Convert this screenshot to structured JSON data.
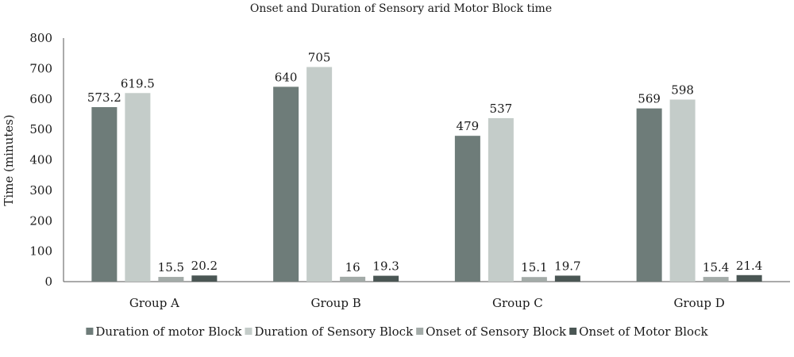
{
  "chart_data": {
    "type": "bar",
    "title": "Onset and Duration of Sensory arid Motor Block time",
    "xlabel": "",
    "ylabel": "Time (minutes)",
    "ylim": [
      0,
      800
    ],
    "yticks": [
      0,
      100,
      200,
      300,
      400,
      500,
      600,
      700,
      800
    ],
    "grid": false,
    "legend_position": "bottom",
    "categories": [
      "Group A",
      "Group B",
      "Group C",
      "Group D"
    ],
    "series": [
      {
        "name": "Duration of motor Block",
        "color": "#6e7c79",
        "values": [
          573.2,
          640,
          479,
          569
        ],
        "labels": [
          "573.2",
          "640",
          "479",
          "569"
        ]
      },
      {
        "name": "Duration of Sensory Block",
        "color": "#c4ccc9",
        "values": [
          619.5,
          705,
          537,
          598
        ],
        "labels": [
          "619.5",
          "705",
          "537",
          "598"
        ]
      },
      {
        "name": "Onset of Sensory Block",
        "color": "#a3aba8",
        "values": [
          15.5,
          16,
          15.1,
          15.4
        ],
        "labels": [
          "15.5",
          "16",
          "15.1",
          "15.4"
        ]
      },
      {
        "name": "Onset of Motor Block",
        "color": "#4a5654",
        "values": [
          20.2,
          19.3,
          19.7,
          21.4
        ],
        "labels": [
          "20.2",
          "19.3",
          "19.7",
          "21.4"
        ]
      }
    ]
  }
}
